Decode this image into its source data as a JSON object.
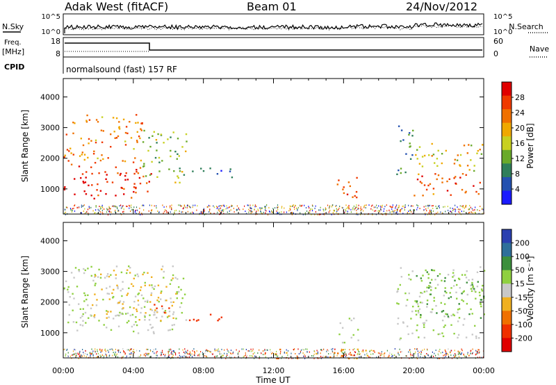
{
  "header": {
    "station": "Adak West (fitACF)",
    "beam": "Beam 01",
    "date": "24/Nov/2012"
  },
  "strip_panels": {
    "nsky_label": "N.Sky",
    "nsearch_label": "N.Search",
    "freq_label_top": "Freq.",
    "freq_label_unit": "[MHz]",
    "nave_label": "Nave",
    "cpid_label": "CPID",
    "cpid_value": "normalsound (fast) 157 RF",
    "noise_left_ticks": [
      "10^5",
      "10^0"
    ],
    "noise_right_ticks": [
      "10^5",
      "10^0"
    ],
    "freq_left_ticks": [
      "18",
      "8"
    ],
    "nave_right_ticks": [
      "60",
      "0"
    ]
  },
  "chart_data": [
    {
      "type": "heatmap",
      "title": "",
      "xlabel": "Time UT",
      "ylabel": "Slant Range [km]",
      "xlim": [
        0,
        24
      ],
      "ylim": [
        180,
        4600
      ],
      "x_ticks": [
        "00:00",
        "04:00",
        "08:00",
        "12:00",
        "16:00",
        "20:00",
        "00:00"
      ],
      "y_ticks": [
        "1000",
        "2000",
        "3000",
        "4000"
      ],
      "colorbar": {
        "label": "Power [dB]",
        "ticks": [
          "4",
          "8",
          "12",
          "16",
          "20",
          "24",
          "28"
        ],
        "colors": [
          "#1a1aff",
          "#2451b0",
          "#2f7f5a",
          "#6aaa2a",
          "#c8d020",
          "#f0a800",
          "#f07000",
          "#f03a00",
          "#e00000"
        ]
      },
      "echo_regions": [
        {
          "t_start": 0.0,
          "t_end": 5.0,
          "r_low": 700,
          "r_high": 1900,
          "power_db": 28
        },
        {
          "t_start": 0.0,
          "t_end": 4.5,
          "r_low": 1900,
          "r_high": 3500,
          "power_db": 22
        },
        {
          "t_start": 4.5,
          "t_end": 7.0,
          "r_low": 1200,
          "r_high": 3000,
          "power_db": 14
        },
        {
          "t_start": 7.0,
          "t_end": 9.8,
          "r_low": 1400,
          "r_high": 1700,
          "power_db": 6
        },
        {
          "t_start": 15.5,
          "t_end": 16.8,
          "r_low": 700,
          "r_high": 1600,
          "power_db": 24
        },
        {
          "t_start": 19.0,
          "t_end": 20.0,
          "r_low": 1500,
          "r_high": 3200,
          "power_db": 8
        },
        {
          "t_start": 20.0,
          "t_end": 24.0,
          "r_low": 800,
          "r_high": 1600,
          "power_db": 26
        },
        {
          "t_start": 20.0,
          "t_end": 24.0,
          "r_low": 1600,
          "r_high": 2500,
          "power_db": 18
        }
      ]
    },
    {
      "type": "heatmap",
      "title": "",
      "xlabel": "Time UT",
      "ylabel": "Slant Range [km]",
      "xlim": [
        0,
        24
      ],
      "ylim": [
        180,
        4600
      ],
      "x_ticks": [
        "00:00",
        "04:00",
        "08:00",
        "12:00",
        "16:00",
        "20:00",
        "00:00"
      ],
      "y_ticks": [
        "1000",
        "2000",
        "3000",
        "4000"
      ],
      "colorbar": {
        "label": "Velocity [m s⁻¹]",
        "ticks": [
          "200",
          "100",
          "50",
          "15",
          "-15",
          "-50",
          "-100",
          "-200"
        ],
        "colors": [
          "#2a3fb0",
          "#2e6f9a",
          "#3c8f3c",
          "#8fd040",
          "#c8c8c8",
          "#f0b020",
          "#f07000",
          "#f03000",
          "#e00000"
        ]
      },
      "echo_regions": [
        {
          "t_start": 0.0,
          "t_end": 7.0,
          "r_low": 1000,
          "r_high": 3200,
          "velocity": 0
        },
        {
          "t_start": 1.5,
          "t_end": 6.5,
          "r_low": 1400,
          "r_high": 3100,
          "velocity": -40
        },
        {
          "t_start": 5.0,
          "t_end": 6.5,
          "r_low": 1650,
          "r_high": 1950,
          "velocity": -200
        },
        {
          "t_start": 7.0,
          "t_end": 9.8,
          "r_low": 1400,
          "r_high": 1650,
          "velocity": -200
        },
        {
          "t_start": 15.5,
          "t_end": 16.8,
          "r_low": 700,
          "r_high": 1500,
          "velocity": 0
        },
        {
          "t_start": 12.0,
          "t_end": 17.5,
          "r_low": 180,
          "r_high": 500,
          "velocity": -80
        },
        {
          "t_start": 19.0,
          "t_end": 24.0,
          "r_low": 800,
          "r_high": 3200,
          "velocity": 0
        },
        {
          "t_start": 20.0,
          "t_end": 24.0,
          "r_low": 1500,
          "r_high": 3100,
          "velocity": 30
        }
      ]
    }
  ]
}
